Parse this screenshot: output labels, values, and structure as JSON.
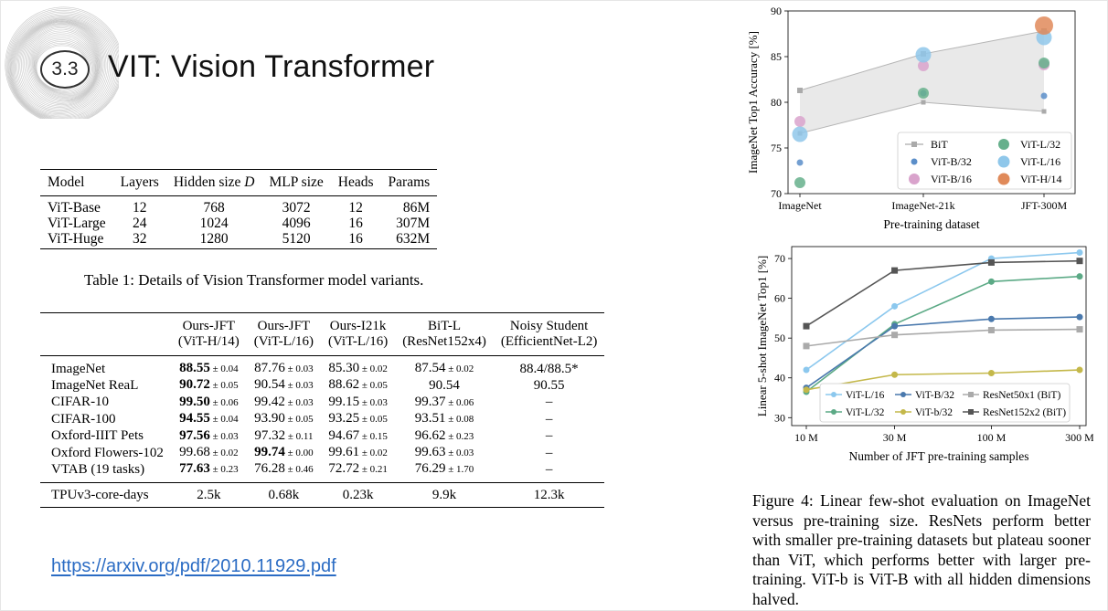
{
  "slide": {
    "number": "3.3",
    "title": "VIT: Vision Transformer",
    "link": "https://arxiv.org/pdf/2010.11929.pdf"
  },
  "table1": {
    "headers": [
      "Model",
      "Layers",
      "Hidden size D",
      "MLP size",
      "Heads",
      "Params"
    ],
    "rows": [
      [
        "ViT-Base",
        "12",
        "768",
        "3072",
        "12",
        "86M"
      ],
      [
        "ViT-Large",
        "24",
        "1024",
        "4096",
        "16",
        "307M"
      ],
      [
        "ViT-Huge",
        "32",
        "1280",
        "5120",
        "16",
        "632M"
      ]
    ],
    "caption": "Table 1: Details of Vision Transformer model variants."
  },
  "table2": {
    "headers": [
      [
        "",
        ""
      ],
      [
        "Ours-JFT",
        "(ViT-H/14)"
      ],
      [
        "Ours-JFT",
        "(ViT-L/16)"
      ],
      [
        "Ours-I21k",
        "(ViT-L/16)"
      ],
      [
        "BiT-L",
        "(ResNet152x4)"
      ],
      [
        "Noisy Student",
        "(EfficientNet-L2)"
      ]
    ],
    "rows": [
      {
        "label": "ImageNet",
        "cells": [
          {
            "v": "88.55",
            "e": "± 0.04",
            "b": true
          },
          {
            "v": "87.76",
            "e": "± 0.03"
          },
          {
            "v": "85.30",
            "e": "± 0.02"
          },
          {
            "v": "87.54",
            "e": "± 0.02"
          },
          {
            "v": "88.4/88.5*",
            "e": ""
          }
        ]
      },
      {
        "label": "ImageNet ReaL",
        "cells": [
          {
            "v": "90.72",
            "e": "± 0.05",
            "b": true
          },
          {
            "v": "90.54",
            "e": "± 0.03"
          },
          {
            "v": "88.62",
            "e": "± 0.05"
          },
          {
            "v": "90.54",
            "e": ""
          },
          {
            "v": "90.55",
            "e": ""
          }
        ]
      },
      {
        "label": "CIFAR-10",
        "cells": [
          {
            "v": "99.50",
            "e": "± 0.06",
            "b": true
          },
          {
            "v": "99.42",
            "e": "± 0.03"
          },
          {
            "v": "99.15",
            "e": "± 0.03"
          },
          {
            "v": "99.37",
            "e": "± 0.06"
          },
          {
            "v": "–",
            "e": ""
          }
        ]
      },
      {
        "label": "CIFAR-100",
        "cells": [
          {
            "v": "94.55",
            "e": "± 0.04",
            "b": true
          },
          {
            "v": "93.90",
            "e": "± 0.05"
          },
          {
            "v": "93.25",
            "e": "± 0.05"
          },
          {
            "v": "93.51",
            "e": "± 0.08"
          },
          {
            "v": "–",
            "e": ""
          }
        ]
      },
      {
        "label": "Oxford-IIIT Pets",
        "cells": [
          {
            "v": "97.56",
            "e": "± 0.03",
            "b": true
          },
          {
            "v": "97.32",
            "e": "± 0.11"
          },
          {
            "v": "94.67",
            "e": "± 0.15"
          },
          {
            "v": "96.62",
            "e": "± 0.23"
          },
          {
            "v": "–",
            "e": ""
          }
        ]
      },
      {
        "label": "Oxford Flowers-102",
        "cells": [
          {
            "v": "99.68",
            "e": "± 0.02"
          },
          {
            "v": "99.74",
            "e": "± 0.00",
            "b": true
          },
          {
            "v": "99.61",
            "e": "± 0.02"
          },
          {
            "v": "99.63",
            "e": "± 0.03"
          },
          {
            "v": "–",
            "e": ""
          }
        ]
      },
      {
        "label": "VTAB (19 tasks)",
        "cells": [
          {
            "v": "77.63",
            "e": "± 0.23",
            "b": true
          },
          {
            "v": "76.28",
            "e": "± 0.46"
          },
          {
            "v": "72.72",
            "e": "± 0.21"
          },
          {
            "v": "76.29",
            "e": "± 1.70"
          },
          {
            "v": "–",
            "e": ""
          }
        ]
      }
    ],
    "tpu": {
      "label": "TPUv3-core-days",
      "values": [
        "2.5k",
        "0.68k",
        "0.23k",
        "9.9k",
        "12.3k"
      ]
    }
  },
  "figure4_caption": "Figure 4: Linear few-shot evaluation on ImageNet versus pre-training size. ResNets perform better with smaller pre-training datasets but plateau sooner than ViT, which performs better with larger pre-training. ViT-b is ViT-B with all hidden dimensions halved.",
  "chart_data": [
    {
      "type": "scatter",
      "title": "",
      "xlabel": "Pre-training dataset",
      "ylabel": "ImageNet Top1 Accuracy [%]",
      "categories": [
        "ImageNet",
        "ImageNet-21k",
        "JFT-300M"
      ],
      "ylim": [
        70,
        90
      ],
      "yticks": [
        70,
        75,
        80,
        85,
        90
      ],
      "grid": false,
      "legend_position": "lower-right",
      "bit_band": {
        "upper": [
          81.3,
          85.3,
          87.8
        ],
        "lower": [
          76.6,
          80.0,
          79.0
        ]
      },
      "series": [
        {
          "name": "BiT",
          "marker": "square-line",
          "color": "#aaaaaa",
          "values": [
            81.3,
            80.0,
            79.0
          ]
        },
        {
          "name": "ViT-B/32",
          "color": "#5b8ec9",
          "size": "small",
          "values": [
            73.4,
            81.0,
            80.7
          ]
        },
        {
          "name": "ViT-B/16",
          "color": "#d9a3cc",
          "size": "medium",
          "values": [
            77.9,
            84.0,
            84.1
          ]
        },
        {
          "name": "ViT-L/32",
          "color": "#66b08c",
          "size": "medium",
          "values": [
            71.2,
            81.0,
            84.3
          ]
        },
        {
          "name": "ViT-L/16",
          "color": "#8fc7ea",
          "size": "large",
          "values": [
            76.5,
            85.2,
            87.1
          ]
        },
        {
          "name": "ViT-H/14",
          "color": "#e08a5a",
          "size": "xlarge",
          "values": [
            null,
            null,
            88.4
          ]
        }
      ]
    },
    {
      "type": "line",
      "title": "",
      "xlabel": "Number of JFT pre-training samples",
      "ylabel": "Linear 5-shot ImageNet Top1 [%]",
      "x": [
        10,
        30,
        100,
        300
      ],
      "xtick_labels": [
        "10 M",
        "30 M",
        "100 M",
        "300 M"
      ],
      "xscale": "log",
      "ylim": [
        28,
        73
      ],
      "yticks": [
        30,
        40,
        50,
        60,
        70
      ],
      "grid": false,
      "legend_position": "bottom-right",
      "series": [
        {
          "name": "ViT-L/16",
          "color": "#8cc8ee",
          "marker": "circle",
          "values": [
            42.0,
            58.0,
            70.0,
            71.5
          ]
        },
        {
          "name": "ViT-L/32",
          "color": "#5caa86",
          "marker": "circle",
          "values": [
            36.5,
            53.5,
            64.2,
            65.5
          ]
        },
        {
          "name": "ViT-B/32",
          "color": "#4a79ad",
          "marker": "circle",
          "values": [
            37.5,
            53.0,
            54.8,
            55.3
          ]
        },
        {
          "name": "ViT-b/32",
          "color": "#c4b84a",
          "marker": "circle",
          "values": [
            37.0,
            40.8,
            41.2,
            42.0
          ]
        },
        {
          "name": "ResNet50x1 (BiT)",
          "color": "#aaaaaa",
          "marker": "square",
          "values": [
            48.0,
            50.8,
            52.0,
            52.2
          ]
        },
        {
          "name": "ResNet152x2 (BiT)",
          "color": "#555555",
          "marker": "square",
          "values": [
            53.0,
            67.0,
            69.0,
            69.4
          ]
        }
      ]
    }
  ]
}
